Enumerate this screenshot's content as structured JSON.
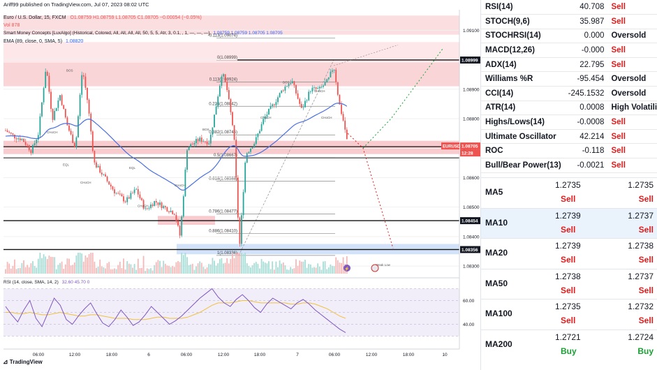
{
  "header": {
    "publisher": "Ariff99 published on TradingView.com, Jul 07, 2023 08:02 UTC",
    "symbol_line": "Euro / U.S. Dollar, 15, FXCM",
    "ohlc": "O1.08759 H1.08759 L1.08705 C1.08705 −0.00054 (−0.05%)",
    "vol": "Vol  878",
    "smc": "Smart Money Concepts [LuxAlgo] (Historical, Colored, All, All, All, All, 50, 5, 5, Atr, 3, 0.1, , 1, —, —, —)",
    "smc_vals": "1.08759  1.08759  1.08705  1.08705",
    "ema": "EMA (89, close, 0, SMA, 5)",
    "ema_val": "1.08820",
    "rsi_label": "RSI (14, close, SMA, 14, 2)",
    "rsi_vals": "32.60  45.70  0",
    "tv_logo": "TradingView"
  },
  "chart_data": {
    "type": "candlestick",
    "symbol": "EURUSD",
    "timeframe": "15",
    "x_ticks": [
      "06:00",
      "12:00",
      "18:00",
      "6",
      "06:00",
      "12:00",
      "18:00",
      "7",
      "06:00",
      "12:00",
      "18:00",
      "10"
    ],
    "y_ticks": [
      "1.09100",
      "1.09000",
      "1.08900",
      "1.08800",
      "1.08700",
      "1.08600",
      "1.08500",
      "1.08400",
      "1.08300"
    ],
    "price_tags": [
      {
        "label": "1.08999",
        "style": "dark"
      },
      {
        "label": "EURUSD",
        "style": "red"
      },
      {
        "label": "1.08705",
        "style": "red"
      },
      {
        "label": "12:28",
        "style": "red"
      },
      {
        "label": "1.08454",
        "style": "dark"
      },
      {
        "label": "1.08356",
        "style": "dark"
      }
    ],
    "fib_levels": [
      {
        "label": "-0.113(1.09074)",
        "price": 1.09074
      },
      {
        "label": "0(1.08999)",
        "price": 1.08999
      },
      {
        "label": "0.113(1.08924)",
        "price": 1.08924
      },
      {
        "label": "0.236(1.08842)",
        "price": 1.08842
      },
      {
        "label": "0.382(1.08745)",
        "price": 1.08745
      },
      {
        "label": "0.5(1.08667)",
        "price": 1.08667
      },
      {
        "label": "0.618(1.08588)",
        "price": 1.08588
      },
      {
        "label": "0.786(1.08477)",
        "price": 1.08477
      },
      {
        "label": "0.886(1.08410)",
        "price": 1.0841
      },
      {
        "label": "1(1.08336)",
        "price": 1.08336
      }
    ],
    "horizontal_lines": [
      1.08999,
      1.08705,
      1.08454,
      1.08356
    ],
    "smc_labels": [
      "BOS",
      "CHoCH",
      "EQL",
      "EQH",
      "Weak Low"
    ],
    "rsi_ticks": [
      "60.00",
      "40.00"
    ],
    "rsi_series": [
      55,
      48,
      42,
      52,
      60,
      45,
      38,
      50,
      62,
      56,
      44,
      40,
      47,
      53,
      58,
      49,
      41,
      38,
      44,
      52,
      46,
      39,
      42,
      48,
      55,
      50,
      45,
      40,
      43,
      47,
      52,
      57,
      62,
      66,
      70,
      63,
      58,
      55,
      61,
      65,
      60,
      54,
      50,
      57,
      62,
      59,
      56,
      53,
      58,
      61,
      57,
      52,
      48,
      44,
      40,
      36,
      33
    ],
    "rsi_sma_series": [
      50,
      50,
      49,
      49,
      50,
      49,
      48,
      48,
      49,
      50,
      49,
      48,
      47,
      47,
      48,
      48,
      47,
      46,
      45,
      45,
      45,
      44,
      44,
      44,
      45,
      46,
      46,
      45,
      45,
      45,
      46,
      48,
      50,
      53,
      56,
      58,
      58,
      58,
      59,
      60,
      60,
      59,
      58,
      58,
      58,
      58,
      58,
      57,
      57,
      58,
      58,
      57,
      55,
      53,
      50,
      47,
      45
    ]
  },
  "oscillators": [
    {
      "name": "RSI(14)",
      "value": "40.708",
      "action": "Sell"
    },
    {
      "name": "STOCH(9,6)",
      "value": "35.987",
      "action": "Sell"
    },
    {
      "name": "STOCHRSI(14)",
      "value": "0.000",
      "action": "Oversold"
    },
    {
      "name": "MACD(12,26)",
      "value": "-0.000",
      "action": "Sell"
    },
    {
      "name": "ADX(14)",
      "value": "22.795",
      "action": "Sell"
    },
    {
      "name": "Williams %R",
      "value": "-95.454",
      "action": "Oversold"
    },
    {
      "name": "CCI(14)",
      "value": "-245.1532",
      "action": "Oversold"
    },
    {
      "name": "ATR(14)",
      "value": "0.0008",
      "action": "High Volatility"
    },
    {
      "name": "Highs/Lows(14)",
      "value": "-0.0008",
      "action": "Sell"
    },
    {
      "name": "Ultimate Oscillator",
      "value": "42.214",
      "action": "Sell"
    },
    {
      "name": "ROC",
      "value": "-0.118",
      "action": "Sell"
    },
    {
      "name": "Bull/Bear Power(13)",
      "value": "-0.0021",
      "action": "Sell"
    }
  ],
  "moving_averages": [
    {
      "name": "MA5",
      "v1": "1.2735",
      "a1": "Sell",
      "v2": "1.2735",
      "a2": "Sell"
    },
    {
      "name": "MA10",
      "v1": "1.2739",
      "a1": "Sell",
      "v2": "1.2737",
      "a2": "Sell"
    },
    {
      "name": "MA20",
      "v1": "1.2739",
      "a1": "Sell",
      "v2": "1.2738",
      "a2": "Sell"
    },
    {
      "name": "MA50",
      "v1": "1.2738",
      "a1": "Sell",
      "v2": "1.2737",
      "a2": "Sell"
    },
    {
      "name": "MA100",
      "v1": "1.2735",
      "a1": "Sell",
      "v2": "1.2732",
      "a2": "Sell"
    },
    {
      "name": "MA200",
      "v1": "1.2721",
      "a1": "Buy",
      "v2": "1.2724",
      "a2": "Buy"
    }
  ],
  "colors": {
    "up": "#26a69a",
    "down": "#ef5350",
    "ema": "#4a6fe0",
    "rsi": "#7e57c2",
    "rsi_sma": "#f0c040",
    "sell": "#e01b1b",
    "buy": "#18a032"
  }
}
